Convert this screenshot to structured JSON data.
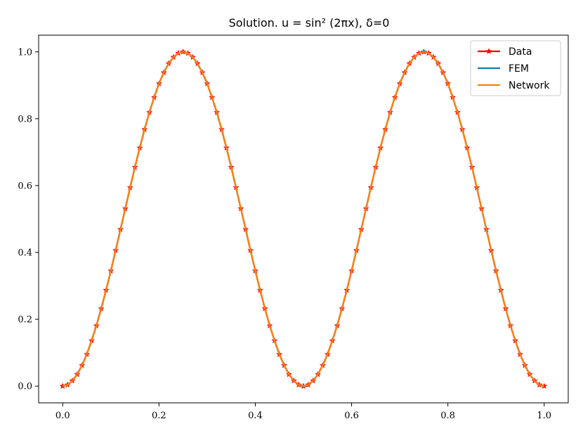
{
  "chart_data": {
    "type": "line",
    "title": "Solution.  u = sin² (2πx), δ=0",
    "xlabel": "",
    "ylabel": "",
    "xlim": [
      -0.05,
      1.05
    ],
    "ylim": [
      -0.05,
      1.05
    ],
    "xticks": [
      0.0,
      0.2,
      0.4,
      0.6,
      0.8,
      1.0
    ],
    "xtick_labels": [
      "0.0",
      "0.2",
      "0.4",
      "0.6",
      "0.8",
      "1.0"
    ],
    "yticks": [
      0.0,
      0.2,
      0.4,
      0.6,
      0.8,
      1.0
    ],
    "ytick_labels": [
      "0.0",
      "0.2",
      "0.4",
      "0.6",
      "0.8",
      "1.0"
    ],
    "grid": false,
    "legend_position": "top-right",
    "x": [
      0.0,
      0.01,
      0.02,
      0.03,
      0.04,
      0.05,
      0.06,
      0.07,
      0.08,
      0.09,
      0.1,
      0.11,
      0.12,
      0.13,
      0.14,
      0.15,
      0.16,
      0.17,
      0.18,
      0.19,
      0.2,
      0.21,
      0.22,
      0.23,
      0.24,
      0.25,
      0.26,
      0.27,
      0.28,
      0.29,
      0.3,
      0.31,
      0.32,
      0.33,
      0.34,
      0.35,
      0.36,
      0.37,
      0.38,
      0.39,
      0.4,
      0.41,
      0.42,
      0.43,
      0.44,
      0.45,
      0.46,
      0.47,
      0.48,
      0.49,
      0.5,
      0.51,
      0.52,
      0.53,
      0.54,
      0.55,
      0.56,
      0.57,
      0.58,
      0.59,
      0.6,
      0.61,
      0.62,
      0.63,
      0.64,
      0.65,
      0.66,
      0.67,
      0.68,
      0.69,
      0.7,
      0.71,
      0.72,
      0.73,
      0.74,
      0.75,
      0.76,
      0.77,
      0.78,
      0.79,
      0.8,
      0.81,
      0.82,
      0.83,
      0.84,
      0.85,
      0.86,
      0.87,
      0.88,
      0.89,
      0.9,
      0.91,
      0.92,
      0.93,
      0.94,
      0.95,
      0.96,
      0.97,
      0.98,
      0.99,
      1.0
    ],
    "series": [
      {
        "name": "Data",
        "color": "#ff0000",
        "marker": "star",
        "values": [
          0.0,
          0.004,
          0.016,
          0.035,
          0.062,
          0.095,
          0.136,
          0.181,
          0.232,
          0.287,
          0.345,
          0.406,
          0.469,
          0.531,
          0.594,
          0.655,
          0.713,
          0.768,
          0.819,
          0.864,
          0.905,
          0.938,
          0.965,
          0.984,
          0.996,
          1.0,
          0.996,
          0.984,
          0.965,
          0.938,
          0.905,
          0.864,
          0.819,
          0.768,
          0.713,
          0.655,
          0.594,
          0.531,
          0.469,
          0.406,
          0.345,
          0.287,
          0.232,
          0.181,
          0.136,
          0.095,
          0.062,
          0.035,
          0.016,
          0.004,
          0.0,
          0.004,
          0.016,
          0.035,
          0.062,
          0.095,
          0.136,
          0.181,
          0.232,
          0.287,
          0.345,
          0.406,
          0.469,
          0.531,
          0.594,
          0.655,
          0.713,
          0.768,
          0.819,
          0.864,
          0.905,
          0.938,
          0.965,
          0.984,
          0.996,
          1.0,
          0.996,
          0.984,
          0.965,
          0.938,
          0.905,
          0.864,
          0.819,
          0.768,
          0.713,
          0.655,
          0.594,
          0.531,
          0.469,
          0.406,
          0.345,
          0.287,
          0.232,
          0.181,
          0.136,
          0.095,
          0.062,
          0.035,
          0.016,
          0.004,
          0.0
        ]
      },
      {
        "name": "FEM",
        "color": "#1f77b4",
        "marker": "none",
        "values": [
          0.0,
          0.004,
          0.016,
          0.035,
          0.062,
          0.095,
          0.136,
          0.181,
          0.232,
          0.287,
          0.345,
          0.406,
          0.469,
          0.531,
          0.594,
          0.655,
          0.713,
          0.768,
          0.819,
          0.864,
          0.905,
          0.938,
          0.965,
          0.984,
          0.996,
          1.0,
          0.996,
          0.984,
          0.965,
          0.938,
          0.905,
          0.864,
          0.819,
          0.768,
          0.713,
          0.655,
          0.594,
          0.531,
          0.469,
          0.406,
          0.345,
          0.287,
          0.232,
          0.181,
          0.136,
          0.095,
          0.062,
          0.035,
          0.016,
          0.004,
          -0.003,
          0.004,
          0.016,
          0.035,
          0.062,
          0.095,
          0.136,
          0.181,
          0.232,
          0.287,
          0.345,
          0.406,
          0.469,
          0.531,
          0.594,
          0.655,
          0.713,
          0.768,
          0.819,
          0.864,
          0.905,
          0.938,
          0.965,
          0.984,
          0.996,
          1.003,
          0.996,
          0.984,
          0.965,
          0.938,
          0.905,
          0.864,
          0.819,
          0.768,
          0.713,
          0.655,
          0.594,
          0.531,
          0.469,
          0.406,
          0.345,
          0.287,
          0.232,
          0.181,
          0.136,
          0.095,
          0.062,
          0.035,
          0.016,
          0.004,
          0.0
        ]
      },
      {
        "name": "Network",
        "color": "#ff7f0e",
        "marker": "none",
        "values": [
          0.0,
          0.004,
          0.016,
          0.035,
          0.062,
          0.095,
          0.136,
          0.181,
          0.232,
          0.287,
          0.345,
          0.406,
          0.469,
          0.531,
          0.594,
          0.655,
          0.713,
          0.768,
          0.819,
          0.864,
          0.905,
          0.938,
          0.965,
          0.984,
          0.996,
          1.0,
          0.996,
          0.984,
          0.965,
          0.938,
          0.905,
          0.864,
          0.819,
          0.768,
          0.713,
          0.655,
          0.594,
          0.531,
          0.469,
          0.406,
          0.345,
          0.287,
          0.232,
          0.181,
          0.136,
          0.095,
          0.062,
          0.035,
          0.016,
          0.004,
          0.0,
          0.004,
          0.016,
          0.035,
          0.062,
          0.095,
          0.136,
          0.181,
          0.232,
          0.287,
          0.345,
          0.406,
          0.469,
          0.531,
          0.594,
          0.655,
          0.713,
          0.768,
          0.819,
          0.864,
          0.905,
          0.938,
          0.965,
          0.984,
          0.996,
          1.0,
          0.996,
          0.984,
          0.965,
          0.938,
          0.905,
          0.864,
          0.819,
          0.768,
          0.713,
          0.655,
          0.594,
          0.531,
          0.469,
          0.406,
          0.345,
          0.287,
          0.232,
          0.181,
          0.136,
          0.095,
          0.062,
          0.035,
          0.016,
          0.004,
          0.0
        ]
      }
    ]
  }
}
